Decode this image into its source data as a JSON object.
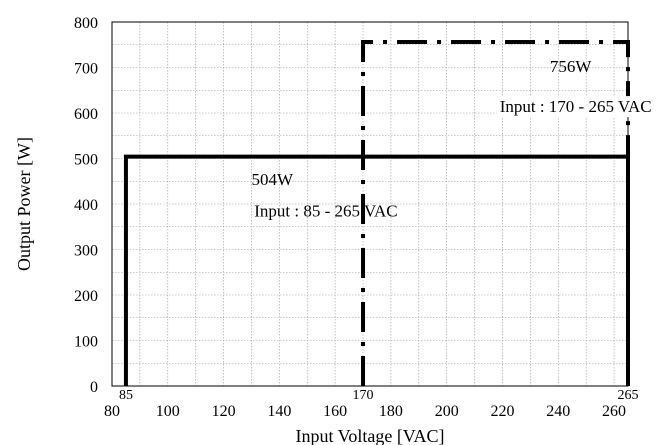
{
  "chart_data": {
    "type": "line",
    "xlabel": "Input Voltage [VAC]",
    "ylabel": "Output Power [W]",
    "xlim": [
      80,
      265
    ],
    "ylim": [
      0,
      800
    ],
    "x_ticks": [
      80,
      100,
      120,
      140,
      160,
      180,
      200,
      220,
      240,
      260
    ],
    "y_ticks": [
      0,
      100,
      200,
      300,
      400,
      500,
      600,
      700,
      800
    ],
    "grid": true,
    "x_markers": [
      85,
      170,
      265
    ],
    "series": [
      {
        "style": "solid",
        "x": [
          85,
          85,
          265,
          265
        ],
        "y": [
          0,
          504,
          504,
          0
        ]
      },
      {
        "style": "dash-dot",
        "x": [
          170,
          170,
          265,
          265
        ],
        "y": [
          0,
          756,
          756,
          0
        ]
      }
    ],
    "annotations": [
      {
        "id": "power-504",
        "text": "504W",
        "x": 130,
        "y": 442
      },
      {
        "id": "range-504",
        "text": "Input : 85 - 265 VAC",
        "x": 131,
        "y": 372,
        "bg": false
      },
      {
        "id": "power-756",
        "text": "756W",
        "x": 237,
        "y": 690
      },
      {
        "id": "range-756",
        "text": "Input : 170 - 265 VAC",
        "x": 219,
        "y": 602,
        "bg": true
      }
    ]
  }
}
